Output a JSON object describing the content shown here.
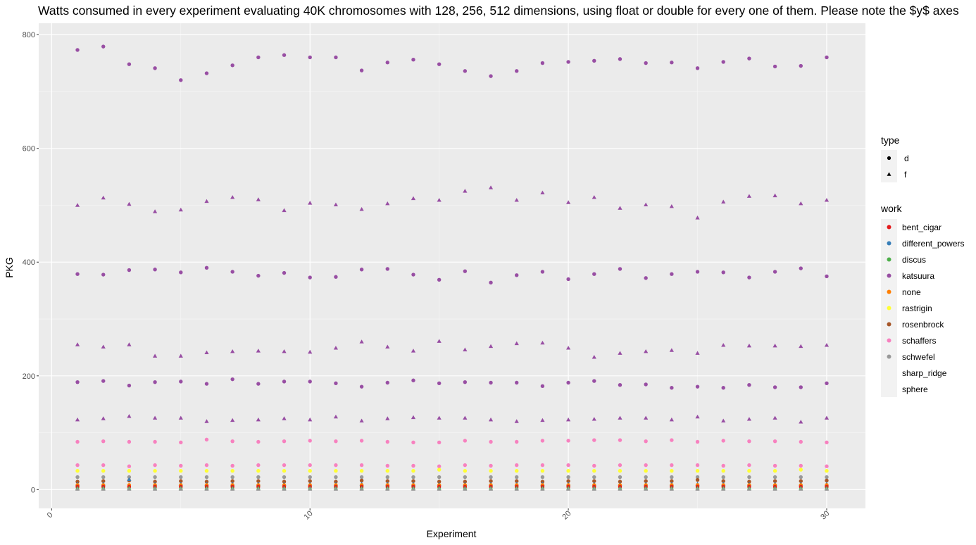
{
  "chart_data": {
    "type": "scatter",
    "title": "Watts consumed in every experiment evaluating 40K chromosomes with 128, 256, 512 dimensions, using float or double for every one of them. Please note the $y$ axes",
    "xlabel": "Experiment",
    "ylabel": "PKG",
    "xlim": [
      -0.5,
      31.5
    ],
    "ylim": [
      -33,
      820
    ],
    "xticks": [
      0,
      10,
      20,
      30
    ],
    "yticks": [
      0,
      200,
      400,
      600,
      800
    ],
    "grid": true,
    "legend_position": "right",
    "legend": {
      "type": {
        "title": "type",
        "entries": [
          {
            "label": "d",
            "shape": "circle"
          },
          {
            "label": "f",
            "shape": "triangle"
          }
        ]
      },
      "work": {
        "title": "work",
        "entries": [
          {
            "label": "bent_cigar",
            "color": "#E41A1C"
          },
          {
            "label": "different_powers",
            "color": "#377EB8"
          },
          {
            "label": "discus",
            "color": "#4DAF4A"
          },
          {
            "label": "katsuura",
            "color": "#984EA3"
          },
          {
            "label": "none",
            "color": "#FF7F00"
          },
          {
            "label": "rastrigin",
            "color": "#FFFF33"
          },
          {
            "label": "rosenbrock",
            "color": "#A65628"
          },
          {
            "label": "schaffers",
            "color": "#F781BF"
          },
          {
            "label": "schwefel",
            "color": "#999999"
          },
          {
            "label": "sharp_ridge",
            "color": null
          },
          {
            "label": "sphere",
            "color": null
          }
        ]
      }
    },
    "x": [
      1,
      2,
      3,
      4,
      5,
      6,
      7,
      8,
      9,
      10,
      11,
      12,
      13,
      14,
      15,
      16,
      17,
      18,
      19,
      20,
      21,
      22,
      23,
      24,
      25,
      26,
      27,
      28,
      29,
      30
    ],
    "series": [
      {
        "name": "katsuura",
        "type": "d",
        "color": "#984EA3",
        "values": [
          773,
          779,
          748,
          741,
          720,
          732,
          746,
          760,
          764,
          760,
          760,
          737,
          751,
          756,
          748,
          736,
          727,
          736,
          750,
          752,
          754,
          757,
          750,
          751,
          741,
          752,
          758,
          744,
          745,
          760
        ]
      },
      {
        "name": "katsuura",
        "type": "f",
        "color": "#984EA3",
        "values": [
          500,
          513,
          502,
          489,
          492,
          507,
          514,
          510,
          491,
          504,
          501,
          493,
          503,
          512,
          509,
          525,
          531,
          509,
          522,
          505,
          514,
          495,
          501,
          498,
          478,
          506,
          516,
          517,
          503,
          509
        ]
      },
      {
        "name": "katsuura",
        "type": "d",
        "color": "#984EA3",
        "values": [
          379,
          378,
          386,
          387,
          382,
          390,
          383,
          376,
          381,
          373,
          374,
          387,
          388,
          378,
          369,
          384,
          364,
          377,
          383,
          370,
          379,
          388,
          372,
          379,
          383,
          382,
          373,
          383,
          389,
          375
        ]
      },
      {
        "name": "katsuura",
        "type": "f",
        "color": "#984EA3",
        "values": [
          255,
          251,
          255,
          235,
          235,
          241,
          243,
          244,
          243,
          242,
          249,
          260,
          251,
          244,
          261,
          246,
          252,
          257,
          258,
          249,
          233,
          240,
          243,
          245,
          240,
          254,
          253,
          253,
          252,
          254
        ]
      },
      {
        "name": "katsuura",
        "type": "d",
        "color": "#984EA3",
        "values": [
          189,
          191,
          183,
          189,
          190,
          186,
          194,
          186,
          190,
          190,
          187,
          181,
          188,
          192,
          187,
          189,
          188,
          188,
          182,
          188,
          191,
          184,
          185,
          179,
          181,
          179,
          184,
          180,
          180,
          187
        ]
      },
      {
        "name": "katsuura",
        "type": "f",
        "color": "#984EA3",
        "values": [
          123,
          125,
          129,
          126,
          126,
          120,
          122,
          123,
          125,
          123,
          128,
          121,
          125,
          127,
          126,
          126,
          123,
          120,
          122,
          123,
          124,
          126,
          126,
          123,
          128,
          121,
          124,
          126,
          119,
          126
        ]
      },
      {
        "name": "schaffers",
        "type": "d",
        "color": "#F781BF",
        "values": [
          84,
          85,
          84,
          84,
          83,
          88,
          85,
          84,
          85,
          86,
          85,
          86,
          84,
          83,
          83,
          86,
          84,
          84,
          86,
          86,
          87,
          87,
          85,
          87,
          84,
          86,
          85,
          85,
          84,
          83
        ]
      },
      {
        "name": "schaffers",
        "type": "d",
        "color": "#F781BF",
        "values": [
          43,
          43,
          41,
          43,
          42,
          43,
          42,
          43,
          43,
          43,
          43,
          43,
          42,
          42,
          41,
          43,
          42,
          43,
          43,
          43,
          42,
          43,
          43,
          43,
          43,
          42,
          43,
          42,
          42,
          41
        ]
      },
      {
        "name": "rastrigin",
        "type": "d",
        "color": "#FFFF33",
        "values": [
          33,
          33,
          33,
          33,
          33,
          33,
          33,
          33,
          33,
          33,
          33,
          33,
          33,
          33,
          35,
          33,
          33,
          33,
          33,
          33,
          33,
          33,
          33,
          33,
          33,
          33,
          33,
          33,
          35,
          33
        ]
      },
      {
        "name": "schwefel",
        "type": "d",
        "color": "#999999",
        "values": [
          22,
          22,
          22,
          22,
          22,
          22,
          22,
          22,
          22,
          22,
          22,
          22,
          22,
          22,
          22,
          22,
          22,
          22,
          22,
          22,
          22,
          22,
          22,
          22,
          22,
          22,
          22,
          22,
          22,
          22
        ]
      },
      {
        "name": "rosenbrock",
        "type": "d",
        "color": "#A65628",
        "values": [
          14,
          15,
          16,
          14,
          15,
          14,
          15,
          15,
          14,
          15,
          14,
          16,
          15,
          15,
          14,
          14,
          15,
          15,
          14,
          15,
          15,
          14,
          15,
          15,
          17,
          15,
          14,
          15,
          15,
          16
        ]
      },
      {
        "name": "different_powers",
        "type": "f",
        "color": "#377EB8",
        "values": [
          10,
          10,
          18,
          10,
          10,
          10,
          10,
          10,
          10,
          10,
          10,
          10,
          10,
          10,
          10,
          10,
          10,
          10,
          10,
          10,
          10,
          10,
          10,
          10,
          10,
          10,
          10,
          10,
          10,
          10
        ]
      },
      {
        "name": "none",
        "type": "d",
        "color": "#FF7F00",
        "values": [
          8,
          8,
          8,
          8,
          8,
          8,
          8,
          8,
          8,
          8,
          8,
          8,
          8,
          8,
          8,
          8,
          8,
          8,
          8,
          8,
          8,
          8,
          8,
          8,
          8,
          8,
          8,
          8,
          8,
          8
        ]
      },
      {
        "name": "bent_cigar",
        "type": "d",
        "color": "#E41A1C",
        "values": [
          5,
          5,
          5,
          5,
          5,
          5,
          5,
          5,
          5,
          5,
          5,
          5,
          5,
          5,
          5,
          5,
          5,
          5,
          5,
          5,
          5,
          5,
          5,
          5,
          5,
          5,
          5,
          5,
          5,
          5
        ]
      },
      {
        "name": "discus",
        "type": "f",
        "color": "#4DAF4A",
        "values": [
          3,
          3,
          3,
          3,
          3,
          3,
          3,
          3,
          3,
          3,
          3,
          3,
          3,
          3,
          3,
          3,
          3,
          3,
          3,
          3,
          3,
          3,
          3,
          3,
          3,
          3,
          3,
          3,
          3,
          3
        ]
      },
      {
        "name": "schwefel",
        "type": "f",
        "color": "#999999",
        "values": [
          1,
          1,
          1,
          1,
          1,
          1,
          1,
          1,
          1,
          1,
          1,
          1,
          1,
          1,
          1,
          1,
          1,
          1,
          1,
          1,
          1,
          1,
          1,
          1,
          1,
          1,
          1,
          1,
          1,
          1
        ]
      }
    ]
  }
}
